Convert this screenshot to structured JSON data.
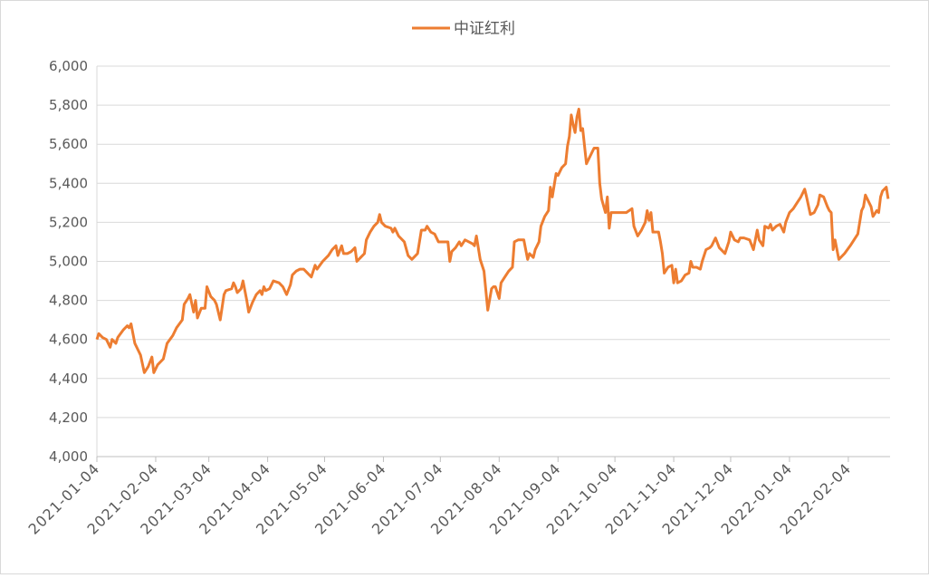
{
  "chart_data": {
    "type": "line",
    "x": [
      "2021-01-04",
      "2021-01-05",
      "2021-01-07",
      "2021-01-09",
      "2021-01-11",
      "2021-01-12",
      "2021-01-14",
      "2021-01-15",
      "2021-01-18",
      "2021-01-20",
      "2021-01-21",
      "2021-01-22",
      "2021-01-23",
      "2021-01-24",
      "2021-01-26",
      "2021-01-27",
      "2021-01-29",
      "2021-01-31",
      "2021-02-02",
      "2021-02-03",
      "2021-02-05",
      "2021-02-08",
      "2021-02-10",
      "2021-02-13",
      "2021-02-15",
      "2021-02-18",
      "2021-02-19",
      "2021-02-21",
      "2021-02-22",
      "2021-02-24",
      "2021-02-25",
      "2021-02-26",
      "2021-02-28",
      "2021-03-02",
      "2021-03-03",
      "2021-03-05",
      "2021-03-07",
      "2021-03-08",
      "2021-03-10",
      "2021-03-12",
      "2021-03-13",
      "2021-03-16",
      "2021-03-17",
      "2021-03-18",
      "2021-03-19",
      "2021-03-21",
      "2021-03-22",
      "2021-03-24",
      "2021-03-25",
      "2021-03-27",
      "2021-03-29",
      "2021-03-31",
      "2021-04-01",
      "2021-04-02",
      "2021-04-03",
      "2021-04-05",
      "2021-04-07",
      "2021-04-10",
      "2021-04-12",
      "2021-04-14",
      "2021-04-16",
      "2021-04-17",
      "2021-04-19",
      "2021-04-21",
      "2021-04-23",
      "2021-04-25",
      "2021-04-27",
      "2021-04-29",
      "2021-04-30",
      "2021-05-03",
      "2021-05-06",
      "2021-05-08",
      "2021-05-10",
      "2021-05-11",
      "2021-05-13",
      "2021-05-14",
      "2021-05-16",
      "2021-05-18",
      "2021-05-20",
      "2021-05-21",
      "2021-05-23",
      "2021-05-25",
      "2021-05-26",
      "2021-05-28",
      "2021-05-30",
      "2021-06-01",
      "2021-06-02",
      "2021-06-03",
      "2021-06-05",
      "2021-06-08",
      "2021-06-09",
      "2021-06-10",
      "2021-06-12",
      "2021-06-15",
      "2021-06-17",
      "2021-06-19",
      "2021-06-20",
      "2021-06-22",
      "2021-06-24",
      "2021-06-26",
      "2021-06-27",
      "2021-06-29",
      "2021-07-01",
      "2021-07-03",
      "2021-07-06",
      "2021-07-08",
      "2021-07-09",
      "2021-07-10",
      "2021-07-12",
      "2021-07-14",
      "2021-07-15",
      "2021-07-17",
      "2021-07-19",
      "2021-07-21",
      "2021-07-22",
      "2021-07-23",
      "2021-07-25",
      "2021-07-27",
      "2021-07-29",
      "2021-07-31",
      "2021-08-01",
      "2021-08-02",
      "2021-08-04",
      "2021-08-05",
      "2021-08-07",
      "2021-08-09",
      "2021-08-11",
      "2021-08-12",
      "2021-08-14",
      "2021-08-17",
      "2021-08-19",
      "2021-08-20",
      "2021-08-22",
      "2021-08-23",
      "2021-08-25",
      "2021-08-26",
      "2021-08-28",
      "2021-08-30",
      "2021-08-31",
      "2021-09-01",
      "2021-09-03",
      "2021-09-04",
      "2021-09-06",
      "2021-09-08",
      "2021-09-09",
      "2021-09-10",
      "2021-09-11",
      "2021-09-12",
      "2021-09-13",
      "2021-09-14",
      "2021-09-15",
      "2021-09-16",
      "2021-09-17",
      "2021-09-19",
      "2021-09-21",
      "2021-09-23",
      "2021-09-25",
      "2021-09-26",
      "2021-09-27",
      "2021-09-29",
      "2021-09-30",
      "2021-10-01",
      "2021-10-02",
      "2021-10-04",
      "2021-10-07",
      "2021-10-10",
      "2021-10-13",
      "2021-10-14",
      "2021-10-16",
      "2021-10-18",
      "2021-10-20",
      "2021-10-21",
      "2021-10-22",
      "2021-10-23",
      "2021-10-24",
      "2021-10-27",
      "2021-10-28",
      "2021-10-29",
      "2021-10-30",
      "2021-11-01",
      "2021-11-03",
      "2021-11-04",
      "2021-11-05",
      "2021-11-06",
      "2021-11-08",
      "2021-11-10",
      "2021-11-12",
      "2021-11-13",
      "2021-11-14",
      "2021-11-16",
      "2021-11-18",
      "2021-11-19",
      "2021-11-21",
      "2021-11-23",
      "2021-11-24",
      "2021-11-26",
      "2021-11-28",
      "2021-11-30",
      "2021-12-01",
      "2021-12-03",
      "2021-12-04",
      "2021-12-06",
      "2021-12-08",
      "2021-12-09",
      "2021-12-11",
      "2021-12-14",
      "2021-12-16",
      "2021-12-18",
      "2021-12-19",
      "2021-12-21",
      "2021-12-22",
      "2021-12-24",
      "2021-12-25",
      "2021-12-26",
      "2021-12-28",
      "2021-12-30",
      "2022-01-01",
      "2022-01-02",
      "2022-01-04",
      "2022-01-06",
      "2022-01-08",
      "2022-01-10",
      "2022-01-12",
      "2022-01-13",
      "2022-01-15",
      "2022-01-17",
      "2022-01-19",
      "2022-01-20",
      "2022-01-22",
      "2022-01-24",
      "2022-01-25",
      "2022-01-26",
      "2022-01-27",
      "2022-01-28",
      "2022-01-30",
      "2022-02-02",
      "2022-02-05",
      "2022-02-07",
      "2022-02-09",
      "2022-02-11",
      "2022-02-12",
      "2022-02-13",
      "2022-02-14",
      "2022-02-16",
      "2022-02-17",
      "2022-02-19",
      "2022-02-20",
      "2022-02-21",
      "2022-02-22",
      "2022-02-24",
      "2022-02-25"
    ],
    "series": [
      {
        "name": "中证红利",
        "color": "#ed7d31",
        "values": [
          4600,
          4630,
          4610,
          4600,
          4560,
          4600,
          4580,
          4610,
          4650,
          4670,
          4660,
          4680,
          4630,
          4580,
          4540,
          4520,
          4430,
          4460,
          4510,
          4430,
          4470,
          4500,
          4580,
          4620,
          4660,
          4700,
          4780,
          4810,
          4830,
          4740,
          4800,
          4710,
          4760,
          4760,
          4870,
          4820,
          4800,
          4780,
          4700,
          4830,
          4850,
          4860,
          4890,
          4870,
          4840,
          4860,
          4900,
          4800,
          4740,
          4790,
          4830,
          4850,
          4830,
          4870,
          4850,
          4860,
          4900,
          4890,
          4870,
          4830,
          4880,
          4930,
          4950,
          4960,
          4960,
          4940,
          4920,
          4980,
          4960,
          5000,
          5030,
          5060,
          5080,
          5030,
          5080,
          5040,
          5040,
          5050,
          5070,
          5000,
          5020,
          5040,
          5110,
          5150,
          5180,
          5200,
          5240,
          5200,
          5180,
          5170,
          5150,
          5170,
          5130,
          5100,
          5030,
          5010,
          5020,
          5040,
          5160,
          5160,
          5180,
          5150,
          5140,
          5100,
          5100,
          5100,
          5000,
          5050,
          5070,
          5100,
          5080,
          5110,
          5100,
          5090,
          5080,
          5130,
          5010,
          4950,
          4750,
          4860,
          4870,
          4870,
          4810,
          4890,
          4920,
          4950,
          4970,
          5100,
          5110,
          5110,
          5010,
          5040,
          5020,
          5060,
          5100,
          5180,
          5230,
          5260,
          5380,
          5330,
          5450,
          5440,
          5480,
          5500,
          5590,
          5640,
          5750,
          5700,
          5660,
          5740,
          5780,
          5670,
          5680,
          5500,
          5540,
          5580,
          5580,
          5400,
          5320,
          5250,
          5330,
          5170,
          5250,
          5250,
          5250,
          5250,
          5270,
          5180,
          5130,
          5160,
          5200,
          5260,
          5210,
          5250,
          5150,
          5150,
          5100,
          5040,
          4940,
          4970,
          4980,
          4890,
          4960,
          4890,
          4900,
          4930,
          4940,
          5000,
          4970,
          4970,
          4960,
          5000,
          5060,
          5070,
          5080,
          5120,
          5070,
          5050,
          5040,
          5100,
          5150,
          5110,
          5100,
          5120,
          5120,
          5110,
          5060,
          5160,
          5110,
          5080,
          5180,
          5170,
          5190,
          5160,
          5180,
          5190,
          5150,
          5200,
          5250,
          5270,
          5300,
          5330,
          5370,
          5330,
          5240,
          5250,
          5290,
          5340,
          5330,
          5280,
          5260,
          5250,
          5060,
          5110,
          5010,
          5040,
          5080,
          5110,
          5140,
          5260,
          5280,
          5340,
          5320,
          5280,
          5230,
          5260,
          5250,
          5330,
          5360,
          5380,
          5320
        ]
      }
    ],
    "xlim": [
      "2021-01-04",
      "2022-02-26"
    ],
    "xticks": [
      "2021-01-04",
      "2021-02-04",
      "2021-03-04",
      "2021-04-04",
      "2021-05-04",
      "2021-06-04",
      "2021-07-04",
      "2021-08-04",
      "2021-09-04",
      "2021-10-04",
      "2021-11-04",
      "2021-12-04",
      "2022-01-04",
      "2022-02-04"
    ],
    "ylim": [
      4000,
      6000
    ],
    "yticks": [
      {
        "value": 4000,
        "label": "4,000"
      },
      {
        "value": 4200,
        "label": "4,200"
      },
      {
        "value": 4400,
        "label": "4,400"
      },
      {
        "value": 4600,
        "label": "4,600"
      },
      {
        "value": 4800,
        "label": "4,800"
      },
      {
        "value": 5000,
        "label": "5,000"
      },
      {
        "value": 5200,
        "label": "5,200"
      },
      {
        "value": 5400,
        "label": "5,400"
      },
      {
        "value": 5600,
        "label": "5,600"
      },
      {
        "value": 5800,
        "label": "5,800"
      },
      {
        "value": 6000,
        "label": "6,000"
      }
    ],
    "grid": true,
    "legend": "top"
  }
}
